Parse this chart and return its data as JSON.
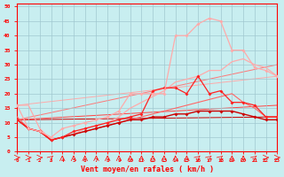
{
  "xlabel": "Vent moyen/en rafales ( km/h )",
  "xlim": [
    0,
    23
  ],
  "ylim": [
    0,
    51
  ],
  "xticks": [
    0,
    1,
    2,
    3,
    4,
    5,
    6,
    7,
    8,
    9,
    10,
    11,
    12,
    13,
    14,
    15,
    16,
    17,
    18,
    19,
    20,
    21,
    22,
    23
  ],
  "yticks": [
    0,
    5,
    10,
    15,
    20,
    25,
    30,
    35,
    40,
    45,
    50
  ],
  "background_color": "#c8eef0",
  "grid_color": "#a0c8d0",
  "axis_color": "#ff0000",
  "tick_color": "#ff0000",
  "label_color": "#ff0000",
  "curve_light_pink_nomarker_x": [
    0,
    1,
    2,
    3,
    4,
    5,
    6,
    7,
    8,
    9,
    10,
    11,
    12,
    13,
    14,
    15,
    16,
    17,
    18,
    19,
    20,
    21,
    22,
    23
  ],
  "curve_light_pink_nomarker_y": [
    16,
    16,
    8,
    4,
    5,
    6,
    8,
    9,
    10,
    12,
    15,
    17,
    19,
    21,
    24,
    25,
    26,
    28,
    28,
    31,
    32,
    30,
    29,
    26
  ],
  "curve_light_pink_nomarker_color": "#ffaaaa",
  "curve_pink_marker_x": [
    0,
    1,
    2,
    3,
    4,
    5,
    6,
    7,
    8,
    9,
    10,
    11,
    12,
    13,
    14,
    15,
    16,
    17,
    18,
    19,
    20,
    21,
    22,
    23
  ],
  "curve_pink_marker_y": [
    16,
    8,
    7,
    5,
    8,
    9,
    10,
    11,
    12,
    14,
    20,
    20,
    20,
    20,
    40,
    40,
    44,
    46,
    45,
    35,
    35,
    29,
    28,
    26
  ],
  "curve_pink_marker_color": "#ffaaaa",
  "curve_red_marker_x": [
    0,
    1,
    2,
    3,
    4,
    5,
    6,
    7,
    8,
    9,
    10,
    11,
    12,
    13,
    14,
    15,
    16,
    17,
    18,
    19,
    20,
    21,
    22,
    23
  ],
  "curve_red_marker_y": [
    11,
    8,
    7,
    4,
    5,
    7,
    8,
    9,
    10,
    11,
    12,
    13,
    21,
    22,
    22,
    20,
    26,
    20,
    21,
    17,
    17,
    16,
    12,
    12
  ],
  "curve_red_marker_color": "#ff2222",
  "curve_darkred_flat_x": [
    0,
    1,
    2,
    3,
    4,
    5,
    6,
    7,
    8,
    9,
    10,
    11,
    12,
    13,
    14,
    15,
    16,
    17,
    18,
    19,
    20,
    21,
    22,
    23
  ],
  "curve_darkred_flat_y": [
    11,
    8,
    7,
    4,
    5,
    6,
    7,
    8,
    9,
    10,
    11,
    11,
    12,
    12,
    13,
    13,
    14,
    14,
    14,
    14,
    13,
    12,
    11,
    11
  ],
  "curve_darkred_flat_color": "#cc0000",
  "curve_med_red_nomarker_x": [
    0,
    1,
    2,
    3,
    4,
    5,
    6,
    7,
    8,
    9,
    10,
    11,
    12,
    13,
    14,
    15,
    16,
    17,
    18,
    19,
    20,
    21,
    22,
    23
  ],
  "curve_med_red_nomarker_y": [
    12,
    8,
    7,
    4,
    5,
    6,
    7,
    8,
    9,
    10,
    11,
    12,
    13,
    14,
    15,
    16,
    17,
    18,
    19,
    20,
    17,
    15,
    12,
    12
  ],
  "curve_med_red_nomarker_color": "#ff6666",
  "straight_line1": {
    "x": [
      0,
      23
    ],
    "y": [
      11,
      12
    ],
    "color": "#cc0000"
  },
  "straight_line2": {
    "x": [
      0,
      23
    ],
    "y": [
      11,
      16
    ],
    "color": "#ff4444"
  },
  "straight_line3": {
    "x": [
      0,
      23
    ],
    "y": [
      11,
      30
    ],
    "color": "#ff7777"
  },
  "straight_line4": {
    "x": [
      0,
      23
    ],
    "y": [
      16,
      26
    ],
    "color": "#ffaaaa"
  },
  "arrow_angles": [
    0,
    0,
    0,
    45,
    90,
    90,
    90,
    90,
    90,
    90,
    90,
    90,
    90,
    90,
    90,
    90,
    45,
    45,
    45,
    90,
    90,
    45,
    0,
    0
  ]
}
